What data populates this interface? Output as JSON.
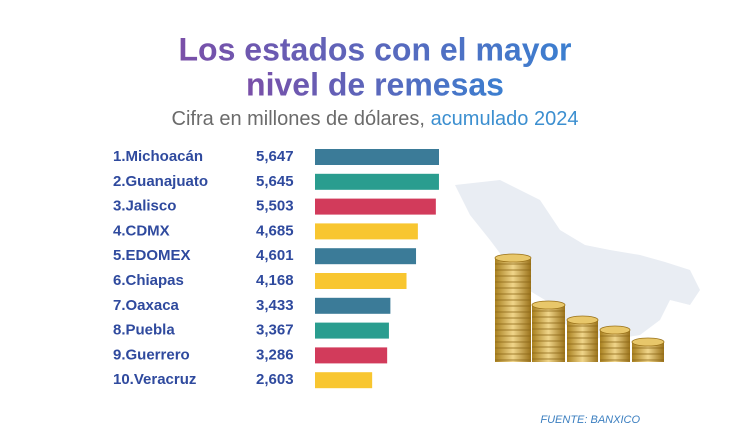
{
  "chart_data": {
    "type": "bar",
    "orientation": "horizontal",
    "title": [
      "Los estados con el mayor",
      "nivel de remesas"
    ],
    "subtitle": "Cifra en millones de dólares,",
    "subtitle_highlight": "acumulado 2024",
    "categories": [
      "1.Michoacán",
      "2.Guanajuato",
      "3.Jalisco",
      "4.CDMX",
      "5.EDOMEX",
      "6.Chiapas",
      "7.Oaxaca",
      "8.Puebla",
      "9.Guerrero",
      "10.Veracruz"
    ],
    "values": [
      5647,
      5645,
      5503,
      4685,
      4601,
      4168,
      3433,
      3367,
      3286,
      2603
    ],
    "value_labels": [
      "5,647",
      "5,645",
      "5,503",
      "4,685",
      "4,601",
      "4,168",
      "3,433",
      "3,367",
      "3,286",
      "2,603"
    ],
    "colors": [
      "#3b7b98",
      "#2a9d8f",
      "#d23b5b",
      "#f8c630",
      "#3b7b98",
      "#f8c630",
      "#3b7b98",
      "#2a9d8f",
      "#d23b5b",
      "#f8c630"
    ],
    "source": "FUENTE: BANXICO"
  }
}
